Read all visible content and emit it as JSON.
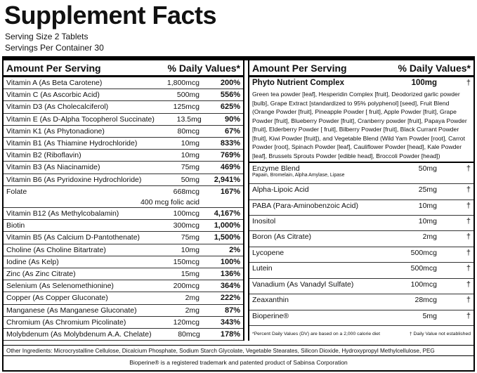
{
  "header": {
    "title": "Supplement Facts",
    "serving_size": "Serving Size 2 Tablets",
    "servings": "Servings Per Container 30"
  },
  "left": {
    "heading_amount": "Amount Per Serving",
    "heading_dv": "% Daily Values*",
    "rows": [
      {
        "name": "Vitamin A (As Beta Carotene)",
        "amount": "1,800mcg",
        "dv": "200%"
      },
      {
        "name": "Vitamin C (As Ascorbic Acid)",
        "amount": "500mg",
        "dv": "556%"
      },
      {
        "name": "Vitamin D3 (As Cholecalciferol)",
        "amount": "125mcg",
        "dv": "625%"
      },
      {
        "name": "Vitamin E (As D-Alpha Tocopherol Succinate)",
        "amount": "13.5mg",
        "dv": "90%"
      },
      {
        "name": "Vitamin K1 (As Phytonadione)",
        "amount": "80mcg",
        "dv": "67%"
      },
      {
        "name": "Vitamin B1 (As Thiamine Hydrochloride)",
        "amount": "10mg",
        "dv": "833%"
      },
      {
        "name": "Vitamin B2 (Riboflavin)",
        "amount": "10mg",
        "dv": "769%"
      },
      {
        "name": "Vitamin B3 (As Niacinamide)",
        "amount": "75mg",
        "dv": "469%"
      },
      {
        "name": "Vitamin B6 (As Pyridoxine Hydrochloride)",
        "amount": "50mg",
        "dv": "2,941%"
      },
      {
        "name": "Folate",
        "amount": "668mcg",
        "dv": "167%",
        "note": "400 mcg folic acid"
      },
      {
        "name": "Vitamin B12 (As Methylcobalamin)",
        "amount": "100mcg",
        "dv": "4,167%"
      },
      {
        "name": "Biotin",
        "amount": "300mcg",
        "dv": "1,000%"
      },
      {
        "name": "Vitamin B5 (As Calcium D-Pantothenate)",
        "amount": "75mg",
        "dv": "1,500%"
      },
      {
        "name": "Choline (As Choline Bitartrate)",
        "amount": "10mg",
        "dv": "2%"
      },
      {
        "name": "Iodine (As Kelp)",
        "amount": "150mcg",
        "dv": "100%"
      },
      {
        "name": "Zinc (As Zinc Citrate)",
        "amount": "15mg",
        "dv": "136%"
      },
      {
        "name": "Selenium (As Selenomethionine)",
        "amount": "200mcg",
        "dv": "364%"
      },
      {
        "name": "Copper (As Copper Gluconate)",
        "amount": "2mg",
        "dv": "222%"
      },
      {
        "name": "Manganese (As Manganese Gluconate)",
        "amount": "2mg",
        "dv": "87%"
      },
      {
        "name": "Chromium (As Chromium Picolinate)",
        "amount": "120mcg",
        "dv": "343%"
      },
      {
        "name": "Molybdenum (As Molybdenum A.A. Chelate)",
        "amount": "80mcg",
        "dv": "178%"
      }
    ]
  },
  "right": {
    "heading_amount": "Amount Per Serving",
    "heading_dv": "% Daily Values*",
    "complex": {
      "name": "Phyto Nutrient Complex",
      "amount": "100mg",
      "dv": "†",
      "description": "Green tea powder [leaf], Hesperidin Complex [fruit], Deodorized garlic powder [bulb], Grape Extract [standardized to 95% polyphenol] [seed], Fruit Blend (Orange Powder [fruit], Pineapple Powder [ fruit], Apple Powder [fruit], Grape Powder [fruit], Blueberry Powder [fruit], Cranberry powder [fruit], Papaya Powder [fruit], Elderberry Powder [ fruit], Bilberry Powder [fruit], Black Currant Powder [fruit], Kiwi Powder [fruit]), and Vegetable Blend (Wild Yam Powder [root], Carrot Powder [root], Spinach Powder [leaf], Cauliflower Powder [head], Kale Powder [leaf], Brussels Sprouts Powder [edible head], Broccoli Powder [head])"
    },
    "rows": [
      {
        "name": "Enzyme Blend",
        "amount": "50mg",
        "dv": "†",
        "sub": "Papain, Bromelain, Alpha Amylase, Lipase"
      },
      {
        "name": "Alpha-Lipoic Acid",
        "amount": "25mg",
        "dv": "†"
      },
      {
        "name": "PABA (Para-Aminobenzoic Acid)",
        "amount": "10mg",
        "dv": "†"
      },
      {
        "name": "Inositol",
        "amount": "10mg",
        "dv": "†"
      },
      {
        "name": "Boron (As Citrate)",
        "amount": "2mg",
        "dv": "†"
      },
      {
        "name": "Lycopene",
        "amount": "500mcg",
        "dv": "†"
      },
      {
        "name": "Lutein",
        "amount": "500mcg",
        "dv": "†"
      },
      {
        "name": "Vanadium (As Vanadyl Sulfate)",
        "amount": "100mcg",
        "dv": "†"
      },
      {
        "name": "Zeaxanthin",
        "amount": "28mcg",
        "dv": "†"
      },
      {
        "name": "Bioperine®",
        "amount": "5mg",
        "dv": "†"
      }
    ],
    "footnote_dv": "*Percent Daily Values (DV) are based on a 2,000 calorie diet",
    "footnote_dagger": "† Daily Value not established"
  },
  "footer": {
    "other_ingredients": "Other Ingredients: Microcrystalline Cellulose, Dicalcium Phosphate, Sodium Starch Glycolate, Vegetable Stearates, Silicon Dioxide, Hydroxypropyl Methylcellulose, PEG",
    "trademark": "Bioperine® is a registered trademark and patented product of Sabinsa Corporation"
  }
}
